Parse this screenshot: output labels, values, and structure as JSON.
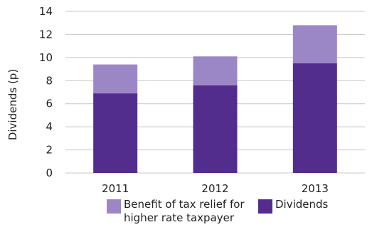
{
  "chart_data": {
    "type": "bar",
    "stacked": true,
    "categories": [
      "2011",
      "2012",
      "2013"
    ],
    "series": [
      {
        "name": "Dividends",
        "values": [
          6.9,
          7.6,
          9.5
        ],
        "color": "#522d8e"
      },
      {
        "name": "Benefit of tax relief for higher rate taxpayer",
        "values": [
          2.5,
          2.5,
          3.3
        ],
        "color": "#9b87c6"
      }
    ],
    "ylabel": "Dividends (p)",
    "xlabel": "",
    "title": "",
    "ylim": [
      0,
      14
    ],
    "yticks": [
      "0",
      "2",
      "4",
      "6",
      "8",
      "10",
      "12",
      "14"
    ],
    "grid": true,
    "legend_position": "bottom"
  },
  "legend": [
    {
      "label": "Benefit of tax relief for higher rate taxpayer",
      "color": "#9b87c6"
    },
    {
      "label": "Dividends",
      "color": "#522d8e"
    }
  ]
}
